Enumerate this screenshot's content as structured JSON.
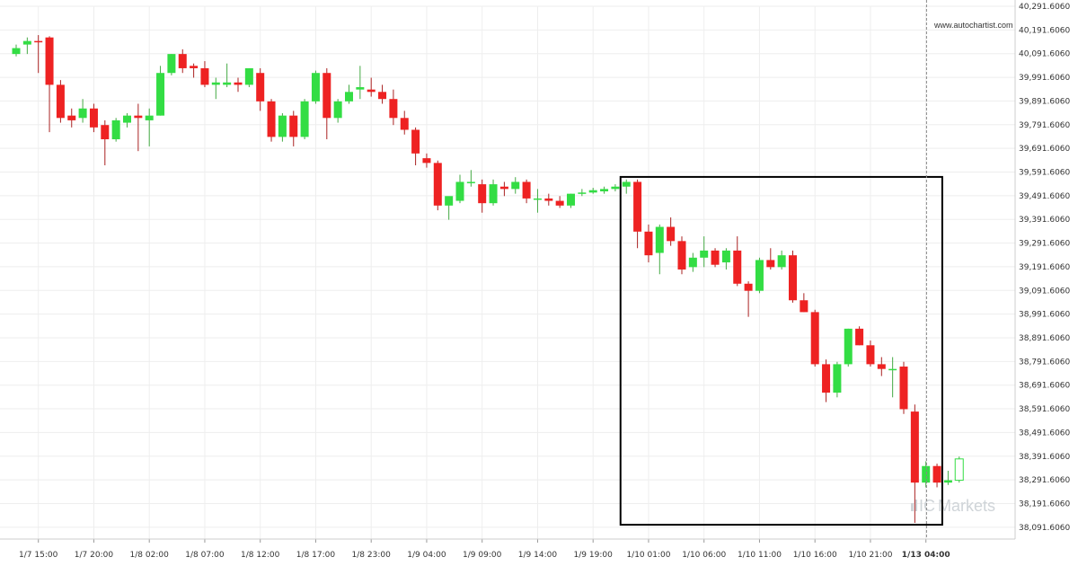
{
  "watermark": "www.autochartist.com",
  "brand": {
    "ic": "IC",
    "markets": "Markets"
  },
  "colors": {
    "up": "#33dd44",
    "down": "#ee2222",
    "wick": "#555555",
    "grid": "#eeeeee",
    "box": "#000000"
  },
  "chart_data": {
    "type": "candlestick",
    "title": "",
    "xlabel": "",
    "ylabel": "",
    "grid": true,
    "ylim": [
      38041.606,
      40291.606
    ],
    "y_ticks": [
      "40,291.6060",
      "40,191.6060",
      "40,091.6060",
      "39,991.6060",
      "39,891.6060",
      "39,791.6060",
      "39,691.6060",
      "39,591.6060",
      "39,491.6060",
      "39,391.6060",
      "39,291.6060",
      "39,191.6060",
      "39,091.6060",
      "38,991.6060",
      "38,891.6060",
      "38,791.6060",
      "38,691.6060",
      "38,591.6060",
      "38,491.6060",
      "38,391.6060",
      "38,291.6060",
      "38,191.6060",
      "38,091.6060"
    ],
    "x_ticks": [
      {
        "label": "1/7 15:00",
        "index": 2
      },
      {
        "label": "1/7 20:00",
        "index": 7
      },
      {
        "label": "1/8 02:00",
        "index": 12
      },
      {
        "label": "1/8 07:00",
        "index": 17
      },
      {
        "label": "1/8 12:00",
        "index": 22
      },
      {
        "label": "1/8 17:00",
        "index": 27
      },
      {
        "label": "1/8 23:00",
        "index": 32
      },
      {
        "label": "1/9 04:00",
        "index": 37
      },
      {
        "label": "1/9 09:00",
        "index": 42
      },
      {
        "label": "1/9 14:00",
        "index": 47
      },
      {
        "label": "1/9 19:00",
        "index": 52
      },
      {
        "label": "1/10 01:00",
        "index": 57
      },
      {
        "label": "1/10 06:00",
        "index": 62
      },
      {
        "label": "1/10 11:00",
        "index": 67
      },
      {
        "label": "1/10 16:00",
        "index": 72
      },
      {
        "label": "1/10 21:00",
        "index": 77
      },
      {
        "label": "1/13 04:00",
        "index": 82,
        "bold": true
      }
    ],
    "highlight_box": {
      "start_index": 55,
      "end_index": 84,
      "high": 39571,
      "low": 38102
    },
    "current_bar_index": 84,
    "candles": [
      {
        "o": 40090,
        "h": 40130,
        "l": 40080,
        "c": 40115
      },
      {
        "o": 40130,
        "h": 40160,
        "l": 40090,
        "c": 40145
      },
      {
        "o": 40145,
        "h": 40170,
        "l": 40010,
        "c": 40140
      },
      {
        "o": 40160,
        "h": 40165,
        "l": 39760,
        "c": 39960
      },
      {
        "o": 39960,
        "h": 39980,
        "l": 39800,
        "c": 39820
      },
      {
        "o": 39830,
        "h": 39860,
        "l": 39780,
        "c": 39810
      },
      {
        "o": 39820,
        "h": 39900,
        "l": 39800,
        "c": 39860
      },
      {
        "o": 39860,
        "h": 39880,
        "l": 39760,
        "c": 39780
      },
      {
        "o": 39790,
        "h": 39810,
        "l": 39620,
        "c": 39730
      },
      {
        "o": 39730,
        "h": 39820,
        "l": 39720,
        "c": 39810
      },
      {
        "o": 39800,
        "h": 39840,
        "l": 39780,
        "c": 39830
      },
      {
        "o": 39830,
        "h": 39880,
        "l": 39680,
        "c": 39820
      },
      {
        "o": 39810,
        "h": 39860,
        "l": 39700,
        "c": 39830
      },
      {
        "o": 39830,
        "h": 40040,
        "l": 39830,
        "c": 40010
      },
      {
        "o": 40010,
        "h": 40090,
        "l": 40000,
        "c": 40090
      },
      {
        "o": 40090,
        "h": 40110,
        "l": 40010,
        "c": 40030
      },
      {
        "o": 40040,
        "h": 40050,
        "l": 39990,
        "c": 40030
      },
      {
        "o": 40030,
        "h": 40060,
        "l": 39950,
        "c": 39960
      },
      {
        "o": 39960,
        "h": 39990,
        "l": 39900,
        "c": 39970
      },
      {
        "o": 39960,
        "h": 40050,
        "l": 39950,
        "c": 39970
      },
      {
        "o": 39970,
        "h": 39990,
        "l": 39930,
        "c": 39960
      },
      {
        "o": 39960,
        "h": 40030,
        "l": 39950,
        "c": 40030
      },
      {
        "o": 40010,
        "h": 40030,
        "l": 39850,
        "c": 39890
      },
      {
        "o": 39890,
        "h": 39900,
        "l": 39720,
        "c": 39740
      },
      {
        "o": 39740,
        "h": 39840,
        "l": 39720,
        "c": 39830
      },
      {
        "o": 39830,
        "h": 39850,
        "l": 39700,
        "c": 39740
      },
      {
        "o": 39740,
        "h": 39900,
        "l": 39730,
        "c": 39890
      },
      {
        "o": 39890,
        "h": 40020,
        "l": 39880,
        "c": 40010
      },
      {
        "o": 40010,
        "h": 40030,
        "l": 39730,
        "c": 39820
      },
      {
        "o": 39820,
        "h": 39900,
        "l": 39800,
        "c": 39890
      },
      {
        "o": 39890,
        "h": 39960,
        "l": 39880,
        "c": 39930
      },
      {
        "o": 39940,
        "h": 40040,
        "l": 39900,
        "c": 39950
      },
      {
        "o": 39940,
        "h": 39990,
        "l": 39910,
        "c": 39930
      },
      {
        "o": 39930,
        "h": 39960,
        "l": 39880,
        "c": 39900
      },
      {
        "o": 39900,
        "h": 39940,
        "l": 39790,
        "c": 39820
      },
      {
        "o": 39820,
        "h": 39850,
        "l": 39750,
        "c": 39770
      },
      {
        "o": 39770,
        "h": 39780,
        "l": 39620,
        "c": 39670
      },
      {
        "o": 39650,
        "h": 39670,
        "l": 39610,
        "c": 39630
      },
      {
        "o": 39630,
        "h": 39640,
        "l": 39430,
        "c": 39450
      },
      {
        "o": 39450,
        "h": 39480,
        "l": 39390,
        "c": 39490
      },
      {
        "o": 39470,
        "h": 39580,
        "l": 39460,
        "c": 39550
      },
      {
        "o": 39550,
        "h": 39600,
        "l": 39530,
        "c": 39550
      },
      {
        "o": 39540,
        "h": 39560,
        "l": 39420,
        "c": 39460
      },
      {
        "o": 39460,
        "h": 39560,
        "l": 39450,
        "c": 39540
      },
      {
        "o": 39530,
        "h": 39550,
        "l": 39490,
        "c": 39520
      },
      {
        "o": 39520,
        "h": 39570,
        "l": 39500,
        "c": 39550
      },
      {
        "o": 39550,
        "h": 39560,
        "l": 39460,
        "c": 39480
      },
      {
        "o": 39480,
        "h": 39520,
        "l": 39420,
        "c": 39480
      },
      {
        "o": 39480,
        "h": 39500,
        "l": 39450,
        "c": 39470
      },
      {
        "o": 39470,
        "h": 39490,
        "l": 39440,
        "c": 39450
      },
      {
        "o": 39450,
        "h": 39500,
        "l": 39440,
        "c": 39500
      },
      {
        "o": 39500,
        "h": 39520,
        "l": 39490,
        "c": 39505
      },
      {
        "o": 39505,
        "h": 39525,
        "l": 39500,
        "c": 39515
      },
      {
        "o": 39510,
        "h": 39530,
        "l": 39500,
        "c": 39520
      },
      {
        "o": 39520,
        "h": 39540,
        "l": 39510,
        "c": 39530
      },
      {
        "o": 39530,
        "h": 39560,
        "l": 39500,
        "c": 39550
      },
      {
        "o": 39550,
        "h": 39560,
        "l": 39270,
        "c": 39340
      },
      {
        "o": 39340,
        "h": 39370,
        "l": 39210,
        "c": 39240
      },
      {
        "o": 39250,
        "h": 39370,
        "l": 39160,
        "c": 39360
      },
      {
        "o": 39360,
        "h": 39400,
        "l": 39280,
        "c": 39300
      },
      {
        "o": 39300,
        "h": 39320,
        "l": 39160,
        "c": 39180
      },
      {
        "o": 39190,
        "h": 39250,
        "l": 39170,
        "c": 39230
      },
      {
        "o": 39230,
        "h": 39320,
        "l": 39190,
        "c": 39260
      },
      {
        "o": 39260,
        "h": 39270,
        "l": 39190,
        "c": 39200
      },
      {
        "o": 39210,
        "h": 39270,
        "l": 39180,
        "c": 39260
      },
      {
        "o": 39260,
        "h": 39320,
        "l": 39110,
        "c": 39120
      },
      {
        "o": 39120,
        "h": 39130,
        "l": 38980,
        "c": 39090
      },
      {
        "o": 39090,
        "h": 39230,
        "l": 39080,
        "c": 39220
      },
      {
        "o": 39220,
        "h": 39270,
        "l": 39180,
        "c": 39190
      },
      {
        "o": 39190,
        "h": 39260,
        "l": 39180,
        "c": 39240
      },
      {
        "o": 39240,
        "h": 39260,
        "l": 39040,
        "c": 39050
      },
      {
        "o": 39050,
        "h": 39080,
        "l": 39000,
        "c": 39000
      },
      {
        "o": 39000,
        "h": 39010,
        "l": 38770,
        "c": 38780
      },
      {
        "o": 38780,
        "h": 38800,
        "l": 38620,
        "c": 38660
      },
      {
        "o": 38660,
        "h": 38790,
        "l": 38640,
        "c": 38780
      },
      {
        "o": 38780,
        "h": 38930,
        "l": 38770,
        "c": 38930
      },
      {
        "o": 38930,
        "h": 38940,
        "l": 38860,
        "c": 38860
      },
      {
        "o": 38860,
        "h": 38880,
        "l": 38770,
        "c": 38780
      },
      {
        "o": 38780,
        "h": 38810,
        "l": 38730,
        "c": 38760
      },
      {
        "o": 38760,
        "h": 38810,
        "l": 38640,
        "c": 38760
      },
      {
        "o": 38770,
        "h": 38790,
        "l": 38570,
        "c": 38590
      },
      {
        "o": 38580,
        "h": 38610,
        "l": 38110,
        "c": 38280
      },
      {
        "o": 38280,
        "h": 38370,
        "l": 38260,
        "c": 38350
      },
      {
        "o": 38350,
        "h": 38360,
        "l": 38260,
        "c": 38280
      },
      {
        "o": 38280,
        "h": 38330,
        "l": 38270,
        "c": 38290
      },
      {
        "o": 38290,
        "h": 38390,
        "l": 38280,
        "c": 38380
      }
    ]
  }
}
